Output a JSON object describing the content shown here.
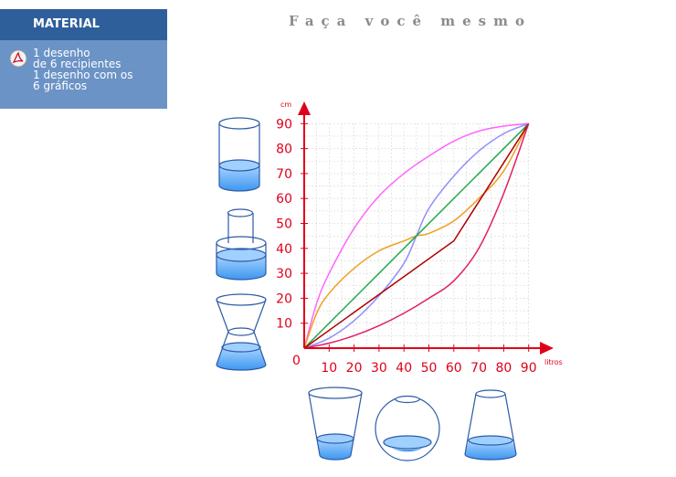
{
  "title": "Faça você mesmo",
  "material": {
    "header": "MATERIAL",
    "icon": "pdf-icon",
    "lines": [
      "1 desenho",
      "de 6 recipientes",
      "1 desenho com os",
      "6 gráficos"
    ]
  },
  "chart_data": {
    "type": "line",
    "xlabel": "litros",
    "ylabel": "cm",
    "origin_label": "0",
    "xlim": [
      0,
      95
    ],
    "ylim": [
      0,
      95
    ],
    "x_ticks": [
      10,
      20,
      30,
      40,
      50,
      60,
      70,
      80,
      90
    ],
    "y_ticks": [
      10,
      20,
      30,
      40,
      50,
      60,
      70,
      80,
      90
    ],
    "grid": true,
    "axis_color": "#e0001b",
    "series": [
      {
        "color": "#ff66ff",
        "x": [
          0,
          5,
          10,
          20,
          30,
          40,
          50,
          60,
          70,
          80,
          90
        ],
        "y": [
          0,
          18,
          30,
          48,
          61,
          70,
          77,
          83,
          87,
          89,
          90
        ]
      },
      {
        "color": "#8f8fff",
        "x": [
          0,
          10,
          20,
          30,
          40,
          45,
          50,
          60,
          70,
          80,
          90
        ],
        "y": [
          0,
          4,
          11,
          21,
          34,
          45,
          56,
          69,
          79,
          86,
          90
        ]
      },
      {
        "color": "#f0a020",
        "x": [
          0,
          5,
          10,
          20,
          30,
          40,
          45,
          50,
          60,
          70,
          80,
          90
        ],
        "y": [
          0,
          14,
          22,
          32,
          39,
          43,
          45,
          46,
          51,
          60,
          71,
          90
        ]
      },
      {
        "color": "#1fa64a",
        "x": [
          0,
          90
        ],
        "y": [
          0,
          90
        ]
      },
      {
        "color": "#b00000",
        "x": [
          0,
          60,
          90
        ],
        "y": [
          0,
          43,
          90
        ]
      },
      {
        "color": "#e02060",
        "x": [
          0,
          10,
          20,
          30,
          40,
          50,
          60,
          70,
          80,
          90
        ],
        "y": [
          0,
          2,
          5,
          9,
          14,
          20,
          27,
          40,
          62,
          90
        ]
      }
    ]
  }
}
